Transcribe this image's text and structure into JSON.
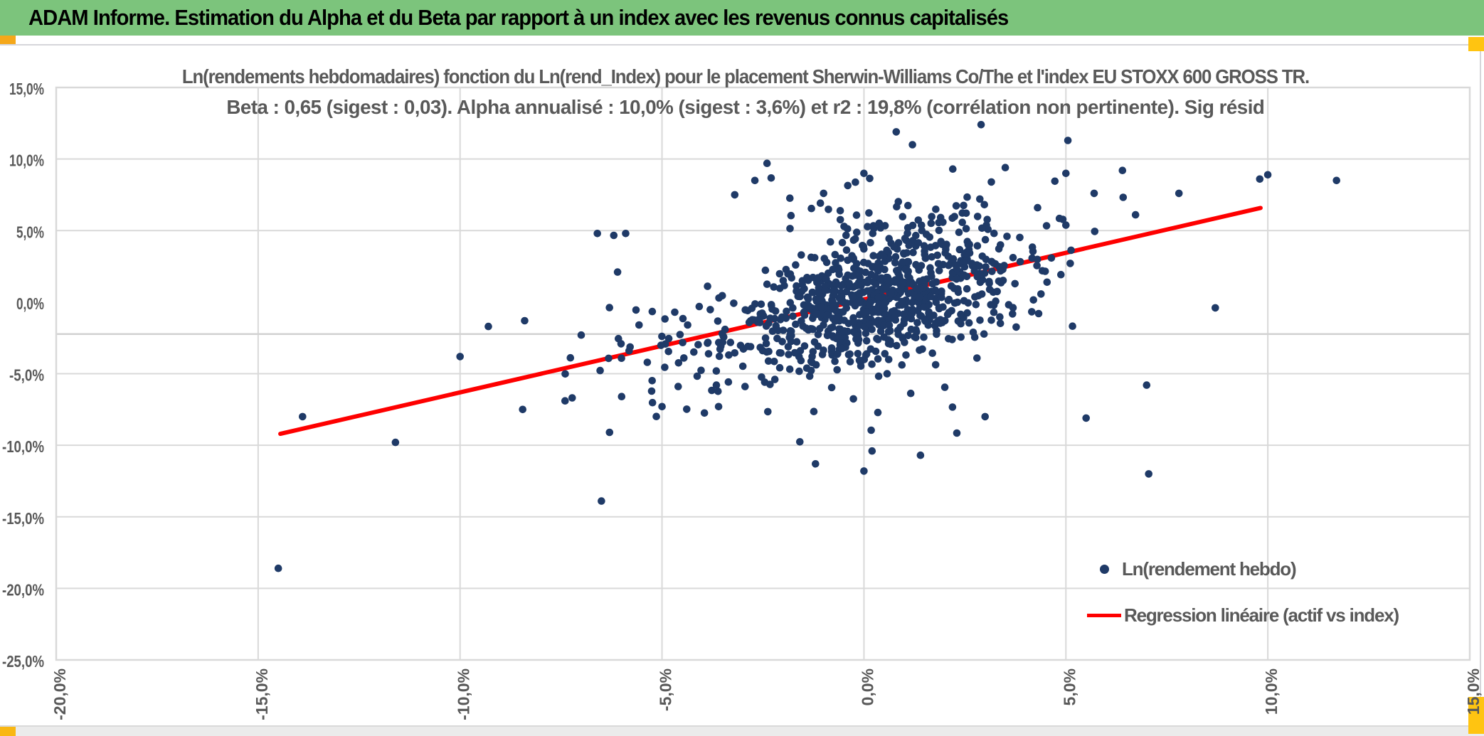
{
  "header": {
    "title": "ADAM Informe. Estimation du Alpha et du Beta par rapport à un index avec les revenus connus capitalisés",
    "bg_color": "#7cc47c"
  },
  "chart_data": {
    "type": "scatter",
    "title_line1": "Ln(rendements hebdomadaires) fonction du Ln(rend_Index) pour le placement Sherwin-Williams Co/The et l'index EU STOXX 600 GROSS TR.",
    "title_line2": "Beta : 0,65 (sigest : 0,03). Alpha annualisé : 10,0% (sigest : 3,6%) et r2 : 19,8% (corrélation non pertinente). Sig résid",
    "xlabel": "",
    "ylabel": "",
    "xlim": [
      -20,
      15
    ],
    "ylim": [
      -25,
      15
    ],
    "x_tick_values": [
      -20,
      -15,
      -10,
      -5,
      0,
      5,
      10,
      15
    ],
    "x_tick_labels": [
      "-20,0%",
      "-15,0%",
      "-10,0%",
      "-5,0%",
      "0,0%",
      "5,0%",
      "10,0%",
      "15,0%"
    ],
    "y_tick_values": [
      15,
      10,
      5,
      0,
      -5,
      -10,
      -15,
      -20,
      -25
    ],
    "y_tick_labels": [
      "15,0%",
      "10,0%",
      "5,0%",
      "0,0%",
      "-5,0%",
      "-10,0%",
      "-15,0%",
      "-20,0%",
      "-25,0%"
    ],
    "gridlines": {
      "vertical_at": [
        -15,
        -10,
        -5,
        0,
        5,
        10
      ],
      "horizontal_at": [
        10,
        5,
        -5,
        -10,
        -15,
        -20
      ],
      "extra_horizontal_at": -2.23,
      "note": "no horizontal gridline at 0%",
      "color": "#d9d9d9"
    },
    "regression_line": {
      "x1": -14.45,
      "y1": -9.2,
      "x2": 9.82,
      "y2": 6.58,
      "color": "#fe0000",
      "width": 6
    },
    "series_stats": {
      "beta": "0,65",
      "beta_sigest": "0,03",
      "alpha_annualise": "10,0%",
      "alpha_sigest": "3,6%",
      "r2": "19,8%"
    },
    "point_color": "#1f3a67",
    "point_radius": 5.3,
    "outlier_points": [
      [
        -14.5,
        -18.6
      ],
      [
        -13.9,
        -8.0
      ],
      [
        -11.6,
        -9.8
      ],
      [
        -10.0,
        -3.8
      ],
      [
        -9.3,
        -1.7
      ],
      [
        -8.4,
        -1.3
      ],
      [
        -8.45,
        -7.5
      ],
      [
        -7.4,
        -6.9
      ],
      [
        -7.0,
        -2.3
      ],
      [
        -6.5,
        -13.9
      ],
      [
        -6.3,
        -9.1
      ],
      [
        -6.0,
        -6.6
      ],
      [
        -6.6,
        4.8
      ],
      [
        -5.9,
        4.8
      ],
      [
        -6.1,
        2.1
      ],
      [
        -5.0,
        -7.3
      ],
      [
        -4.6,
        -5.9
      ],
      [
        -3.95,
        -7.75
      ],
      [
        -3.6,
        -7.3
      ],
      [
        -3.2,
        7.5
      ],
      [
        -2.7,
        8.5
      ],
      [
        -2.4,
        9.7
      ],
      [
        -1.0,
        7.6
      ],
      [
        -0.4,
        8.15
      ],
      [
        0.0,
        9.0
      ],
      [
        0.8,
        11.9
      ],
      [
        1.2,
        11.0
      ],
      [
        2.2,
        9.3
      ],
      [
        2.9,
        12.4
      ],
      [
        3.5,
        9.4
      ],
      [
        5.05,
        11.3
      ],
      [
        5.0,
        9.0
      ],
      [
        5.7,
        7.6
      ],
      [
        4.3,
        6.6
      ],
      [
        6.4,
        9.2
      ],
      [
        7.8,
        7.6
      ],
      [
        9.8,
        8.6
      ],
      [
        10.0,
        8.9
      ],
      [
        11.7,
        8.5
      ],
      [
        8.7,
        -0.4
      ],
      [
        7.0,
        -5.8
      ],
      [
        5.5,
        -8.1
      ],
      [
        7.05,
        -12.0
      ],
      [
        3.0,
        -8.0
      ],
      [
        2.3,
        -9.15
      ],
      [
        1.4,
        -10.7
      ],
      [
        0.18,
        -8.95
      ],
      [
        0.0,
        -11.8
      ],
      [
        -1.2,
        -11.3
      ],
      [
        0.2,
        -10.4
      ]
    ],
    "cloud": {
      "seed": 1337,
      "n": 950,
      "beta": 0.65,
      "alpha_weekly": 0.19,
      "x_mixture": [
        {
          "w": 0.7,
          "mu": 0.6,
          "sd": 1.5
        },
        {
          "w": 0.24,
          "mu": -0.4,
          "sd": 2.7
        },
        {
          "w": 0.06,
          "mu": -2.0,
          "sd": 4.0
        }
      ],
      "resid_mixture": [
        {
          "w": 0.78,
          "sd": 2.1
        },
        {
          "w": 0.22,
          "sd": 3.6
        }
      ],
      "x_clip": [
        -7.9,
        8.2
      ],
      "y_clip": [
        -11.8,
        10.8
      ]
    },
    "legend": [
      {
        "label": "Ln(rendement hebdo)",
        "marker": "dot",
        "color": "#1f3a67"
      },
      {
        "label": "Regression linéaire (actif vs index)",
        "marker": "line",
        "color": "#fe0000"
      }
    ],
    "legend_position": "bottom-right-inside"
  },
  "decor": {
    "corner_tl": "#f5a81a",
    "corner_tr": "#ffc411",
    "corner_bl": "#f9b713",
    "corner_br": "#ffc411"
  }
}
